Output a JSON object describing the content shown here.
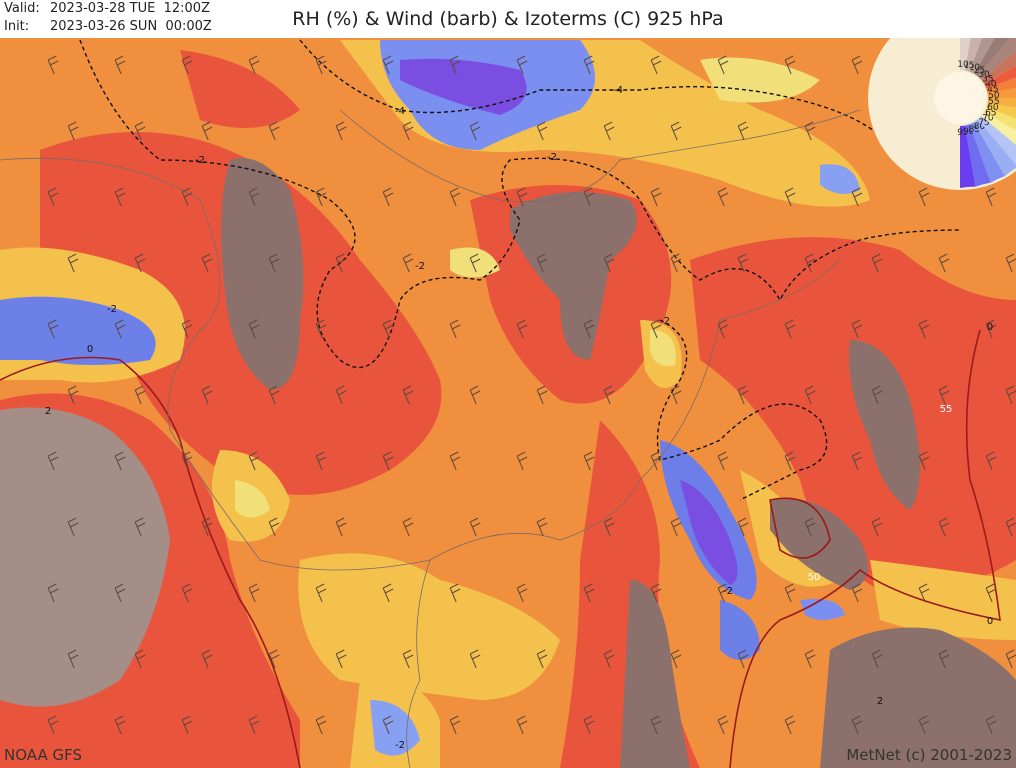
{
  "header": {
    "valid_label": "Valid:",
    "valid": "2023-03-28 TUE  12:00Z",
    "init_label": "Init:",
    "init": "2023-03-26 SUN  00:00Z",
    "title": "RH (%) & Wind (barb) & Izoterms (C) 925 hPa"
  },
  "legend": {
    "levels": [
      95,
      90,
      85,
      80,
      75,
      70,
      65,
      60,
      55,
      50,
      45,
      40,
      35,
      30,
      25,
      20,
      15,
      10
    ]
  },
  "contour_labels": [
    "-4",
    "-4",
    "-2",
    "-2",
    "-2",
    "-2",
    "-2",
    "-2",
    "-2",
    "0",
    "0",
    "0",
    "2",
    "2",
    "55",
    "50"
  ],
  "footer": {
    "source": "NOAA GFS",
    "credit": "MetNet (c) 2001-2023"
  }
}
